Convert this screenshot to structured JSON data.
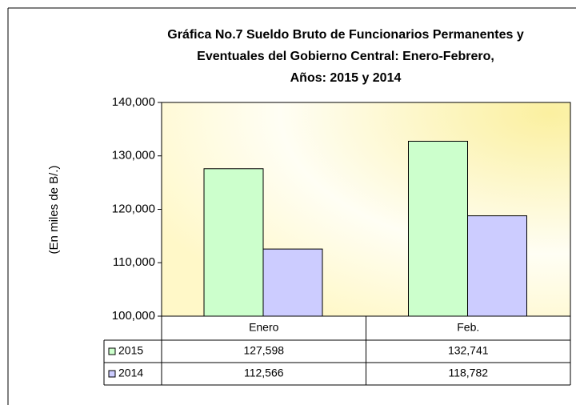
{
  "chart_data": {
    "type": "bar",
    "title": [
      "Gráfica No.7 Sueldo Bruto de Funcionarios Permanentes y",
      "Eventuales del Gobierno Central: Enero-Febrero,",
      "Años: 2015 y 2014"
    ],
    "y_label": "(En miles de B/.)",
    "categories": [
      "Enero",
      "Feb."
    ],
    "series": [
      {
        "name": "2015",
        "color": "#ccffcc",
        "values": [
          127598,
          132741
        ],
        "value_labels": [
          "127,598",
          "132,741"
        ]
      },
      {
        "name": "2014",
        "color": "#ccccff",
        "values": [
          112566,
          118782
        ],
        "value_labels": [
          "112,566",
          "118,782"
        ]
      }
    ],
    "ylim": [
      100000,
      140000
    ],
    "yticks": [
      {
        "value": 100000,
        "label": "100,000"
      },
      {
        "value": 110000,
        "label": "110,000"
      },
      {
        "value": 120000,
        "label": "120,000"
      },
      {
        "value": 130000,
        "label": "130,000"
      },
      {
        "value": 140000,
        "label": "140,000"
      }
    ]
  }
}
